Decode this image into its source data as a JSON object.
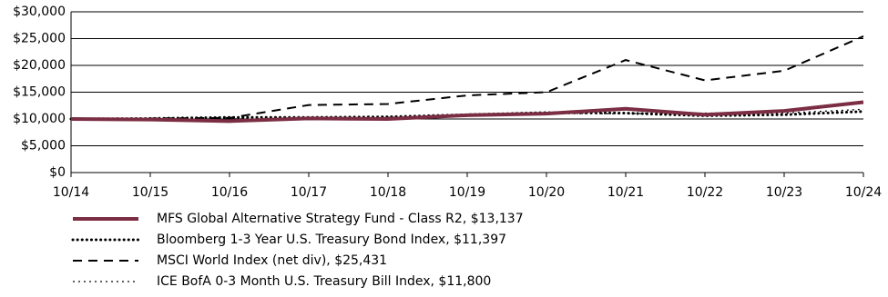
{
  "chart_data": {
    "type": "line",
    "categories": [
      "10/14",
      "10/15",
      "10/16",
      "10/17",
      "10/18",
      "10/19",
      "10/20",
      "10/21",
      "10/22",
      "10/23",
      "10/24"
    ],
    "series": [
      {
        "name": "MFS Global Alternative Strategy Fund - Class R2, $13,137",
        "color": "#7b2d43",
        "line_style": "solid",
        "values": [
          10000,
          9900,
          9600,
          10100,
          10000,
          10700,
          11000,
          11900,
          10800,
          11500,
          13137
        ]
      },
      {
        "name": "Bloomberg 1-3 Year U.S. Treasury Bond Index, $11,397",
        "color": "#000000",
        "line_style": "dotted",
        "values": [
          10000,
          10100,
          10300,
          10300,
          10400,
          10800,
          11200,
          11100,
          10600,
          10800,
          11397
        ]
      },
      {
        "name": "MSCI World Index (net div), $25,431",
        "color": "#000000",
        "line_style": "dashed",
        "values": [
          10000,
          10100,
          10200,
          12600,
          12800,
          14400,
          15000,
          21000,
          17200,
          19000,
          25431
        ]
      },
      {
        "name": "ICE BofA 0-3 Month U.S. Treasury Bill Index, $11,800",
        "color": "#000000",
        "line_style": "fine-dotted",
        "values": [
          10000,
          10000,
          10000,
          10100,
          10300,
          10600,
          11000,
          11000,
          11100,
          11100,
          11800
        ]
      }
    ],
    "ylim": [
      0,
      30000
    ],
    "yticks": [
      {
        "value": 0,
        "label": "$0"
      },
      {
        "value": 5000,
        "label": "$5,000"
      },
      {
        "value": 10000,
        "label": "$10,000"
      },
      {
        "value": 15000,
        "label": "$15,000"
      },
      {
        "value": 20000,
        "label": "$20,000"
      },
      {
        "value": 25000,
        "label": "$25,000"
      },
      {
        "value": 30000,
        "label": "$30,000"
      }
    ],
    "grid": true
  }
}
